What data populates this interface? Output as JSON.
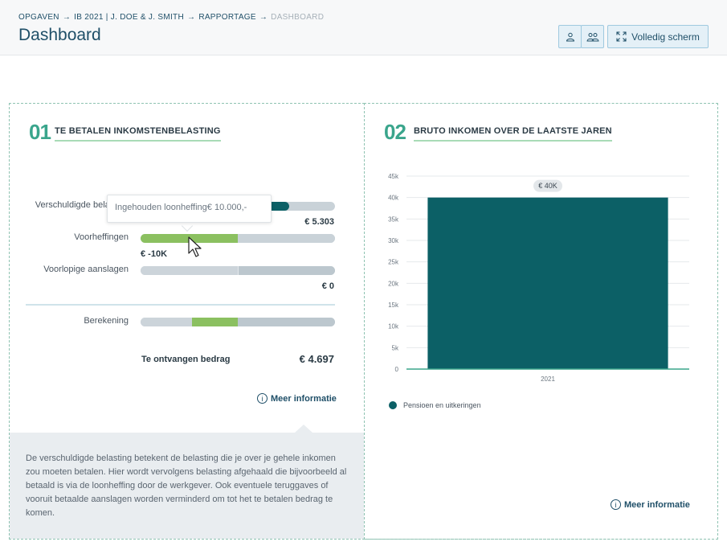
{
  "header": {
    "breadcrumb": {
      "items": [
        "OPGAVEN",
        "IB 2021 | J. DOE & J. SMITH",
        "RAPPORTAGE"
      ],
      "separator": "→",
      "current": "DASHBOARD"
    },
    "title": "Dashboard",
    "fullscreen_label": "Volledig scherm"
  },
  "section1": {
    "number": "01",
    "title": "TE BETALEN INKOMSTENBELASTING",
    "rows": [
      {
        "label": "Verschuldigde belasting",
        "value": "€ 5.303"
      },
      {
        "label": "Voorheffingen",
        "value": "€ -10K"
      },
      {
        "label": "Voorlopige aanslagen",
        "value": "€ 0"
      },
      {
        "label": "Berekening",
        "value": ""
      }
    ],
    "total_label": "Te ontvangen bedrag",
    "total_value": "€ 4.697",
    "tooltip_label": "Ingehouden loonheffing",
    "tooltip_value": "€ 10.000,-",
    "more_info": "Meer informatie",
    "info_text": "De verschuldigde belasting betekent de belasting die je over je gehele inkomen zou moeten betalen. Hier wordt vervolgens belasting afgehaald die bijvoorbeeld al betaald is via de loonheffing door de werkgever. Ook eventuele teruggaves of vooruit betaalde aanslagen worden verminderd om tot het te betalen bedrag te komen."
  },
  "section2": {
    "number": "02",
    "title": "BRUTO INKOMEN OVER DE LAATSTE JAREN",
    "more_info": "Meer informatie"
  },
  "colors": {
    "accent_dark": "#0c6066",
    "accent_green": "#8bc060",
    "track_gray": "#c9d2d8",
    "track_dark": "#b7c4cc",
    "heading_green": "#3aa58c"
  },
  "chart_data": {
    "type": "bar",
    "categories": [
      "2021"
    ],
    "series": [
      {
        "name": "Pensioen en uitkeringen",
        "values": [
          40000
        ]
      }
    ],
    "data_labels": [
      "€ 40K"
    ],
    "yticks": [
      "0",
      "5k",
      "10k",
      "15k",
      "20k",
      "25k",
      "30k",
      "35k",
      "40k",
      "45k"
    ],
    "ylim": [
      0,
      45000
    ],
    "grid": true,
    "legend_position": "bottom-left"
  }
}
